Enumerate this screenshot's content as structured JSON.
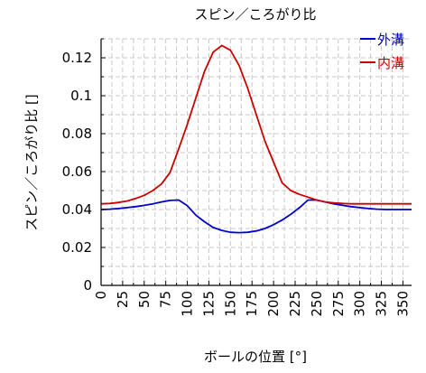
{
  "chart_data": {
    "type": "line",
    "title": "スピン／ころがり比",
    "xlabel": "ボールの位置 [°]",
    "ylabel": "スピン／ころがり比 []",
    "xlim": [
      0,
      360
    ],
    "ylim": [
      0,
      0.13
    ],
    "x_ticks": [
      "0",
      "25",
      "50",
      "75",
      "100",
      "125",
      "150",
      "175",
      "200",
      "225",
      "250",
      "275",
      "300",
      "325",
      "350"
    ],
    "y_ticks": [
      "0",
      "0.02",
      "0.04",
      "0.06",
      "0.08",
      "0.1",
      "0.12"
    ],
    "grid": true,
    "legend_position": "top-right",
    "x": [
      0,
      10,
      20,
      30,
      40,
      50,
      60,
      70,
      80,
      90,
      100,
      110,
      120,
      130,
      140,
      150,
      160,
      170,
      180,
      190,
      200,
      210,
      220,
      230,
      240,
      250,
      260,
      270,
      280,
      290,
      300,
      310,
      320,
      330,
      340,
      350,
      360
    ],
    "series": [
      {
        "name": "外溝",
        "color": "#0000cc",
        "values": [
          0.04,
          0.0402,
          0.0405,
          0.041,
          0.0415,
          0.0422,
          0.043,
          0.044,
          0.0448,
          0.045,
          0.042,
          0.037,
          0.0335,
          0.0305,
          0.029,
          0.028,
          0.0278,
          0.028,
          0.0287,
          0.03,
          0.032,
          0.0345,
          0.0375,
          0.041,
          0.045,
          0.045,
          0.044,
          0.043,
          0.0422,
          0.0415,
          0.041,
          0.0405,
          0.0402,
          0.04,
          0.04,
          0.04,
          0.04
        ]
      },
      {
        "name": "内溝",
        "color": "#cc0000",
        "values": [
          0.043,
          0.0432,
          0.0437,
          0.0445,
          0.0458,
          0.0475,
          0.05,
          0.0535,
          0.0595,
          0.072,
          0.085,
          0.099,
          0.113,
          0.123,
          0.1265,
          0.124,
          0.116,
          0.104,
          0.09,
          0.076,
          0.065,
          0.054,
          0.05,
          0.048,
          0.0465,
          0.045,
          0.044,
          0.0435,
          0.0432,
          0.043,
          0.043,
          0.043,
          0.043,
          0.043,
          0.043,
          0.043,
          0.043
        ]
      }
    ]
  }
}
